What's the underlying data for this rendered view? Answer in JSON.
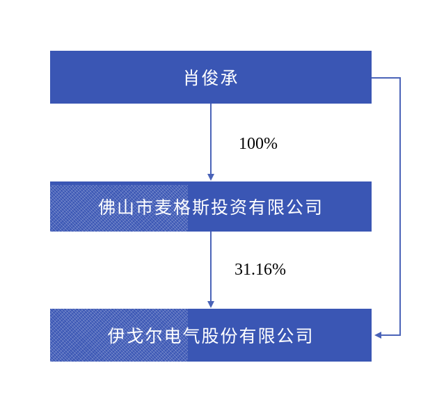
{
  "diagram": {
    "nodes": [
      {
        "id": "top",
        "label": "肖俊承"
      },
      {
        "id": "mid",
        "label": "佛山市麦格斯投资有限公司"
      },
      {
        "id": "bot",
        "label": "伊戈尔电气股份有限公司"
      }
    ],
    "edges": [
      {
        "from": "top",
        "to": "mid",
        "label": "100%"
      },
      {
        "from": "mid",
        "to": "bot",
        "label": "31.16%"
      },
      {
        "from": "top",
        "to": "bot",
        "label": ""
      }
    ],
    "colors": {
      "box_fill": "#3a56b4",
      "box_text": "#ffffff",
      "arrow": "#3a56b4",
      "label_text": "#000000"
    }
  }
}
